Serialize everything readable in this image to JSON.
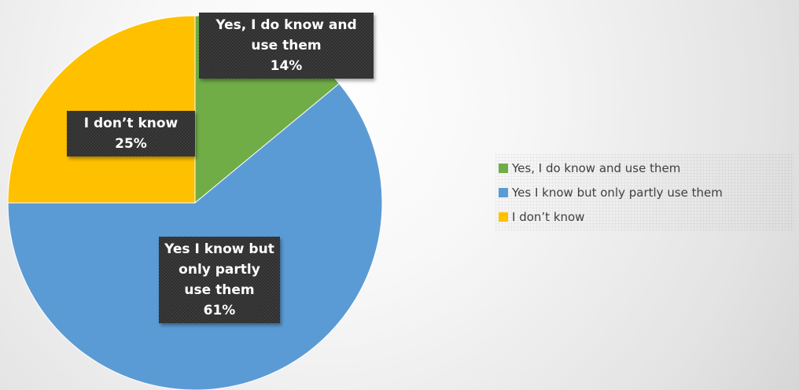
{
  "chart_data": {
    "type": "pie",
    "title": "",
    "categories": [
      "Yes, I do know and use them",
      "Yes I know but only partly use them",
      "I don’t know"
    ],
    "values": [
      14,
      61,
      25
    ],
    "value_labels": [
      "14%",
      "61%",
      "25%"
    ],
    "colors": [
      "#70ad47",
      "#5b9bd5",
      "#ffc000"
    ],
    "slice_labels": [
      "Yes, I do know and use them",
      "Yes I know but only partly use them",
      "I don’t know"
    ],
    "legend": {
      "position": "right",
      "entries": [
        "Yes, I do know and use them",
        "Yes I know but only partly use them",
        "I don’t know"
      ]
    },
    "start_angle": "12 o'clock",
    "direction": "clockwise"
  }
}
